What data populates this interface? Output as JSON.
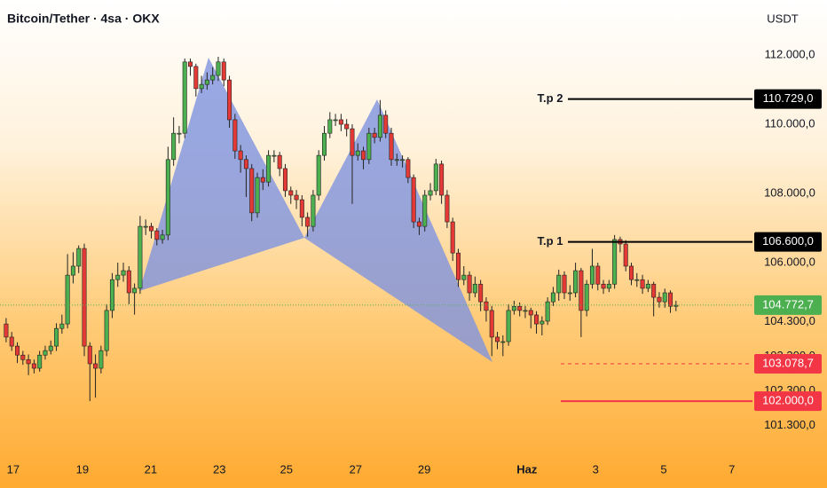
{
  "chart_data": {
    "type": "candlestick",
    "title": "Bitcoin/Tether · 4sa · OKX",
    "currency": "USDT",
    "up_color": "#4caf50",
    "down_color": "#e53935",
    "xlim": [
      -1.1,
      133.7
    ],
    "xticks": [
      {
        "value": 1.27,
        "label": "17"
      },
      {
        "value": 13.67,
        "label": "19"
      },
      {
        "value": 25.9,
        "label": "21"
      },
      {
        "value": 38.2,
        "label": "23"
      },
      {
        "value": 50.2,
        "label": "25"
      },
      {
        "value": 62.6,
        "label": "27"
      },
      {
        "value": 74.9,
        "label": "29"
      },
      {
        "value": 93.3,
        "label": "Haz"
      },
      {
        "value": 105.6,
        "label": "3"
      },
      {
        "value": 117.8,
        "label": "5"
      },
      {
        "value": 130.0,
        "label": "7"
      }
    ],
    "ylim": [
      99490,
      113590
    ],
    "yticks": [
      {
        "value": 112000,
        "label": "112.000,0"
      },
      {
        "value": 110000,
        "label": "110.000,0"
      },
      {
        "value": 108000,
        "label": "108.000,0"
      },
      {
        "value": 106000,
        "label": "106.000,0"
      },
      {
        "value": 104300,
        "label": "104.300,0"
      },
      {
        "value": 103300,
        "label": "103.300,0"
      },
      {
        "value": 102300,
        "label": "102.300,0"
      },
      {
        "value": 101300,
        "label": "101.300,0"
      }
    ],
    "open": [
      104230,
      103850,
      103590,
      103330,
      103200,
      103080,
      102950,
      103330,
      103460,
      103590,
      104100,
      104230,
      105640,
      105900,
      106410,
      103590,
      103080,
      102950,
      103460,
      104620,
      105510,
      105640,
      105770,
      105130,
      105260,
      107050,
      107050,
      106920,
      106670,
      106800,
      108980,
      109740,
      109740,
      111800,
      111670,
      111030,
      111150,
      111280,
      111410,
      111800,
      111280,
      110130,
      109230,
      108980,
      108720,
      107440,
      108460,
      108330,
      109100,
      109100,
      108720,
      108080,
      107950,
      107820,
      107310,
      107050,
      107950,
      109100,
      109740,
      110130,
      110130,
      110000,
      109870,
      109100,
      109230,
      108980,
      109740,
      109620,
      110260,
      109740,
      108980,
      108980,
      108980,
      108460,
      107180,
      107050,
      107950,
      108080,
      108850,
      107950,
      107180,
      106280,
      105510,
      105640,
      105130,
      105380,
      104870,
      104620,
      103850,
      103720,
      103720,
      104620,
      104740,
      104620,
      104620,
      104490,
      104230,
      104310,
      104870,
      105130,
      105640,
      105130,
      105130,
      105770,
      104620,
      105380,
      105900,
      105380,
      105260,
      105380,
      106670,
      106540,
      105900,
      105510,
      105510,
      105260,
      105380,
      105000,
      104870,
      105130,
      104740
    ],
    "high": [
      104400,
      104000,
      103700,
      103450,
      103350,
      103200,
      103450,
      103600,
      103750,
      104250,
      104500,
      106250,
      106300,
      106500,
      106550,
      103700,
      103350,
      103600,
      104800,
      105700,
      106000,
      106000,
      105900,
      105400,
      107350,
      107250,
      107150,
      107000,
      106950,
      109350,
      110200,
      109950,
      111900,
      111900,
      111750,
      111400,
      111500,
      111650,
      111950,
      111900,
      111400,
      110300,
      109400,
      109100,
      108850,
      108600,
      108700,
      109250,
      109250,
      109200,
      108850,
      108200,
      108100,
      107950,
      107450,
      108100,
      109250,
      109950,
      110350,
      110300,
      110300,
      110150,
      110000,
      109450,
      109350,
      109900,
      109900,
      110700,
      110400,
      109900,
      109150,
      109100,
      109050,
      108550,
      107300,
      108100,
      108300,
      109000,
      108950,
      108100,
      107300,
      106400,
      105900,
      105750,
      105600,
      105500,
      105000,
      104750,
      104000,
      103900,
      104800,
      104900,
      104850,
      104750,
      104700,
      104600,
      104450,
      105000,
      105300,
      105800,
      105750,
      105350,
      106000,
      105850,
      105500,
      106400,
      106000,
      105500,
      105500,
      106800,
      106750,
      106650,
      106000,
      105700,
      105650,
      105500,
      105450,
      105150,
      105250,
      105200,
      104900
    ],
    "low": [
      103700,
      103450,
      103100,
      103050,
      102750,
      102800,
      102850,
      103200,
      103350,
      103450,
      103950,
      104100,
      105400,
      105700,
      103300,
      102000,
      102100,
      102800,
      103300,
      104400,
      105300,
      105450,
      104800,
      104500,
      105100,
      106800,
      106700,
      106500,
      106550,
      106650,
      108800,
      109450,
      109600,
      111400,
      110800,
      110900,
      111000,
      111150,
      111250,
      111100,
      109900,
      109000,
      108600,
      107900,
      107200,
      107300,
      108100,
      108200,
      108900,
      108500,
      107900,
      107700,
      107550,
      107050,
      106750,
      106900,
      107800,
      108950,
      109600,
      109950,
      109800,
      109650,
      107700,
      108950,
      108700,
      108850,
      109450,
      109500,
      109600,
      108800,
      108800,
      108750,
      108300,
      107000,
      106800,
      106900,
      107800,
      107950,
      107700,
      107000,
      106050,
      105300,
      105350,
      104900,
      105000,
      104600,
      104300,
      103300,
      103500,
      103300,
      103600,
      104500,
      104450,
      104400,
      104100,
      103950,
      103900,
      104200,
      104750,
      104900,
      104950,
      104900,
      105000,
      103850,
      104450,
      105250,
      105200,
      105100,
      105150,
      105250,
      106300,
      105750,
      105350,
      105300,
      105100,
      105150,
      104450,
      104700,
      104700,
      104550,
      104600
    ],
    "close": [
      103850,
      103590,
      103330,
      103200,
      103080,
      102950,
      103330,
      103460,
      103590,
      104100,
      104230,
      105640,
      105900,
      106410,
      103590,
      103080,
      102950,
      103460,
      104620,
      105510,
      105640,
      105770,
      105130,
      105260,
      107050,
      107050,
      106920,
      106670,
      106800,
      108980,
      109740,
      109740,
      111800,
      111670,
      111030,
      111150,
      111280,
      111410,
      111800,
      111280,
      110130,
      109230,
      108980,
      108720,
      107440,
      108460,
      108330,
      109100,
      109100,
      108720,
      108080,
      107950,
      107820,
      107310,
      107050,
      107950,
      109100,
      109740,
      110130,
      110130,
      110000,
      109870,
      109100,
      109230,
      108980,
      109740,
      109620,
      110260,
      109740,
      108980,
      108980,
      108980,
      108460,
      107180,
      107050,
      107950,
      108080,
      108850,
      107950,
      107180,
      106280,
      105510,
      105640,
      105130,
      105380,
      104870,
      104620,
      103850,
      103720,
      103720,
      104620,
      104740,
      104620,
      104620,
      104490,
      104230,
      104310,
      104870,
      105130,
      105640,
      105130,
      105130,
      105770,
      104620,
      105380,
      105900,
      105380,
      105260,
      105380,
      106670,
      106540,
      105900,
      105510,
      105510,
      105260,
      105380,
      105000,
      104870,
      105130,
      104740,
      104770
    ],
    "last_price": {
      "value": 104772.7,
      "label": "104.772,7",
      "color": "#4caf50"
    },
    "levels": [
      {
        "name": "T.p 2",
        "value": 110729,
        "label": "110.729,0",
        "color": "#000000",
        "style": "solid"
      },
      {
        "name": "T.p 1",
        "value": 106600,
        "label": "106.600,0",
        "color": "#000000",
        "style": "solid"
      },
      {
        "value": 103078.7,
        "label": "103.078,7",
        "color": "#f23645",
        "style": "dashed"
      },
      {
        "value": 102000,
        "label": "102.000,0",
        "color": "#f23645",
        "style": "solid"
      }
    ]
  }
}
